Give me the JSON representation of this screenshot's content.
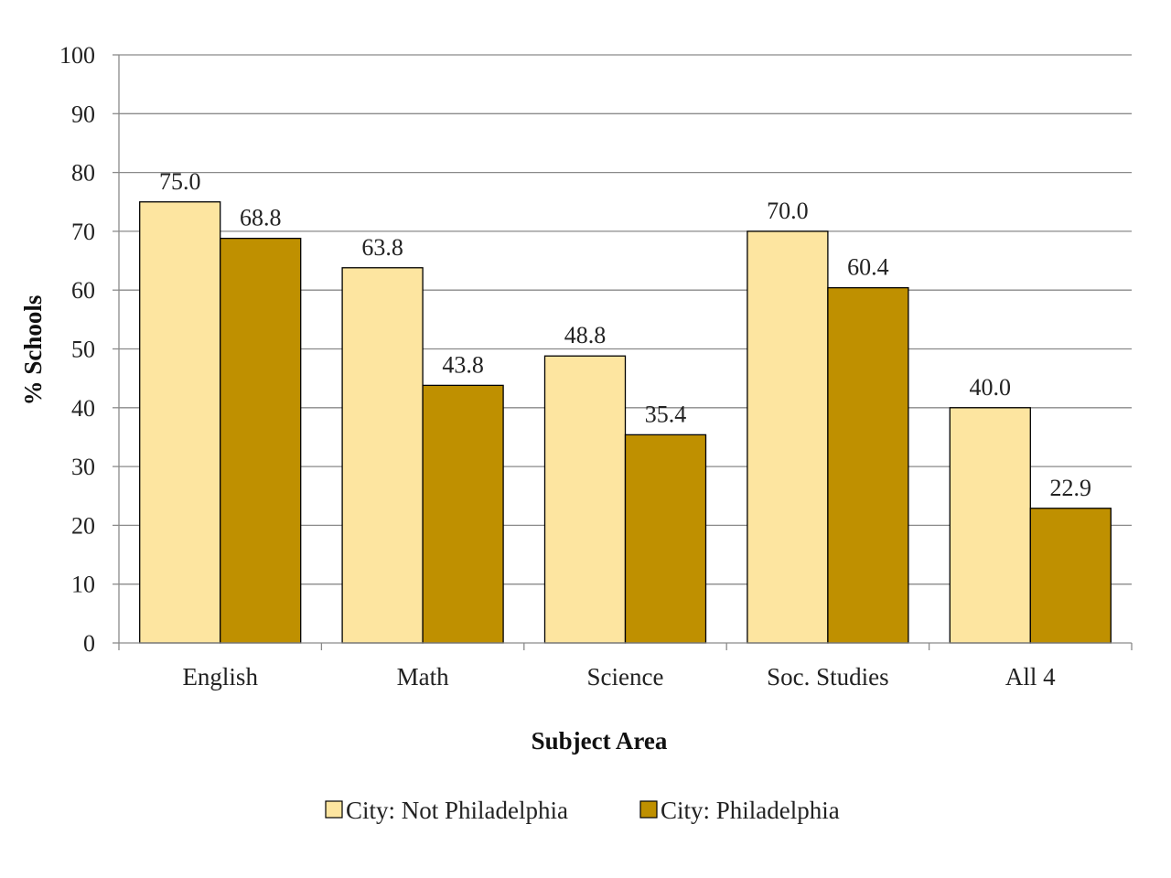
{
  "chart_data": {
    "type": "bar",
    "title": "",
    "xlabel": "Subject Area",
    "ylabel": "% Schools",
    "ylim": [
      0,
      100
    ],
    "yticks": [
      0,
      10,
      20,
      30,
      40,
      50,
      60,
      70,
      80,
      90,
      100
    ],
    "grid": true,
    "legend_position": "bottom",
    "categories": [
      "English",
      "Math",
      "Science",
      "Soc. Studies",
      "All 4"
    ],
    "series": [
      {
        "name": "City: Not Philadelphia",
        "values": [
          75.0,
          63.8,
          48.8,
          70.0,
          40.0
        ],
        "labels": [
          "75.0",
          "63.8",
          "48.8",
          "70.0",
          "40.0"
        ],
        "color": "#FDE5A0"
      },
      {
        "name": "City: Philadelphia",
        "values": [
          68.8,
          43.8,
          35.4,
          60.4,
          22.9
        ],
        "labels": [
          "68.8",
          "43.8",
          "35.4",
          "60.4",
          "22.9"
        ],
        "color": "#BF9000"
      }
    ]
  }
}
